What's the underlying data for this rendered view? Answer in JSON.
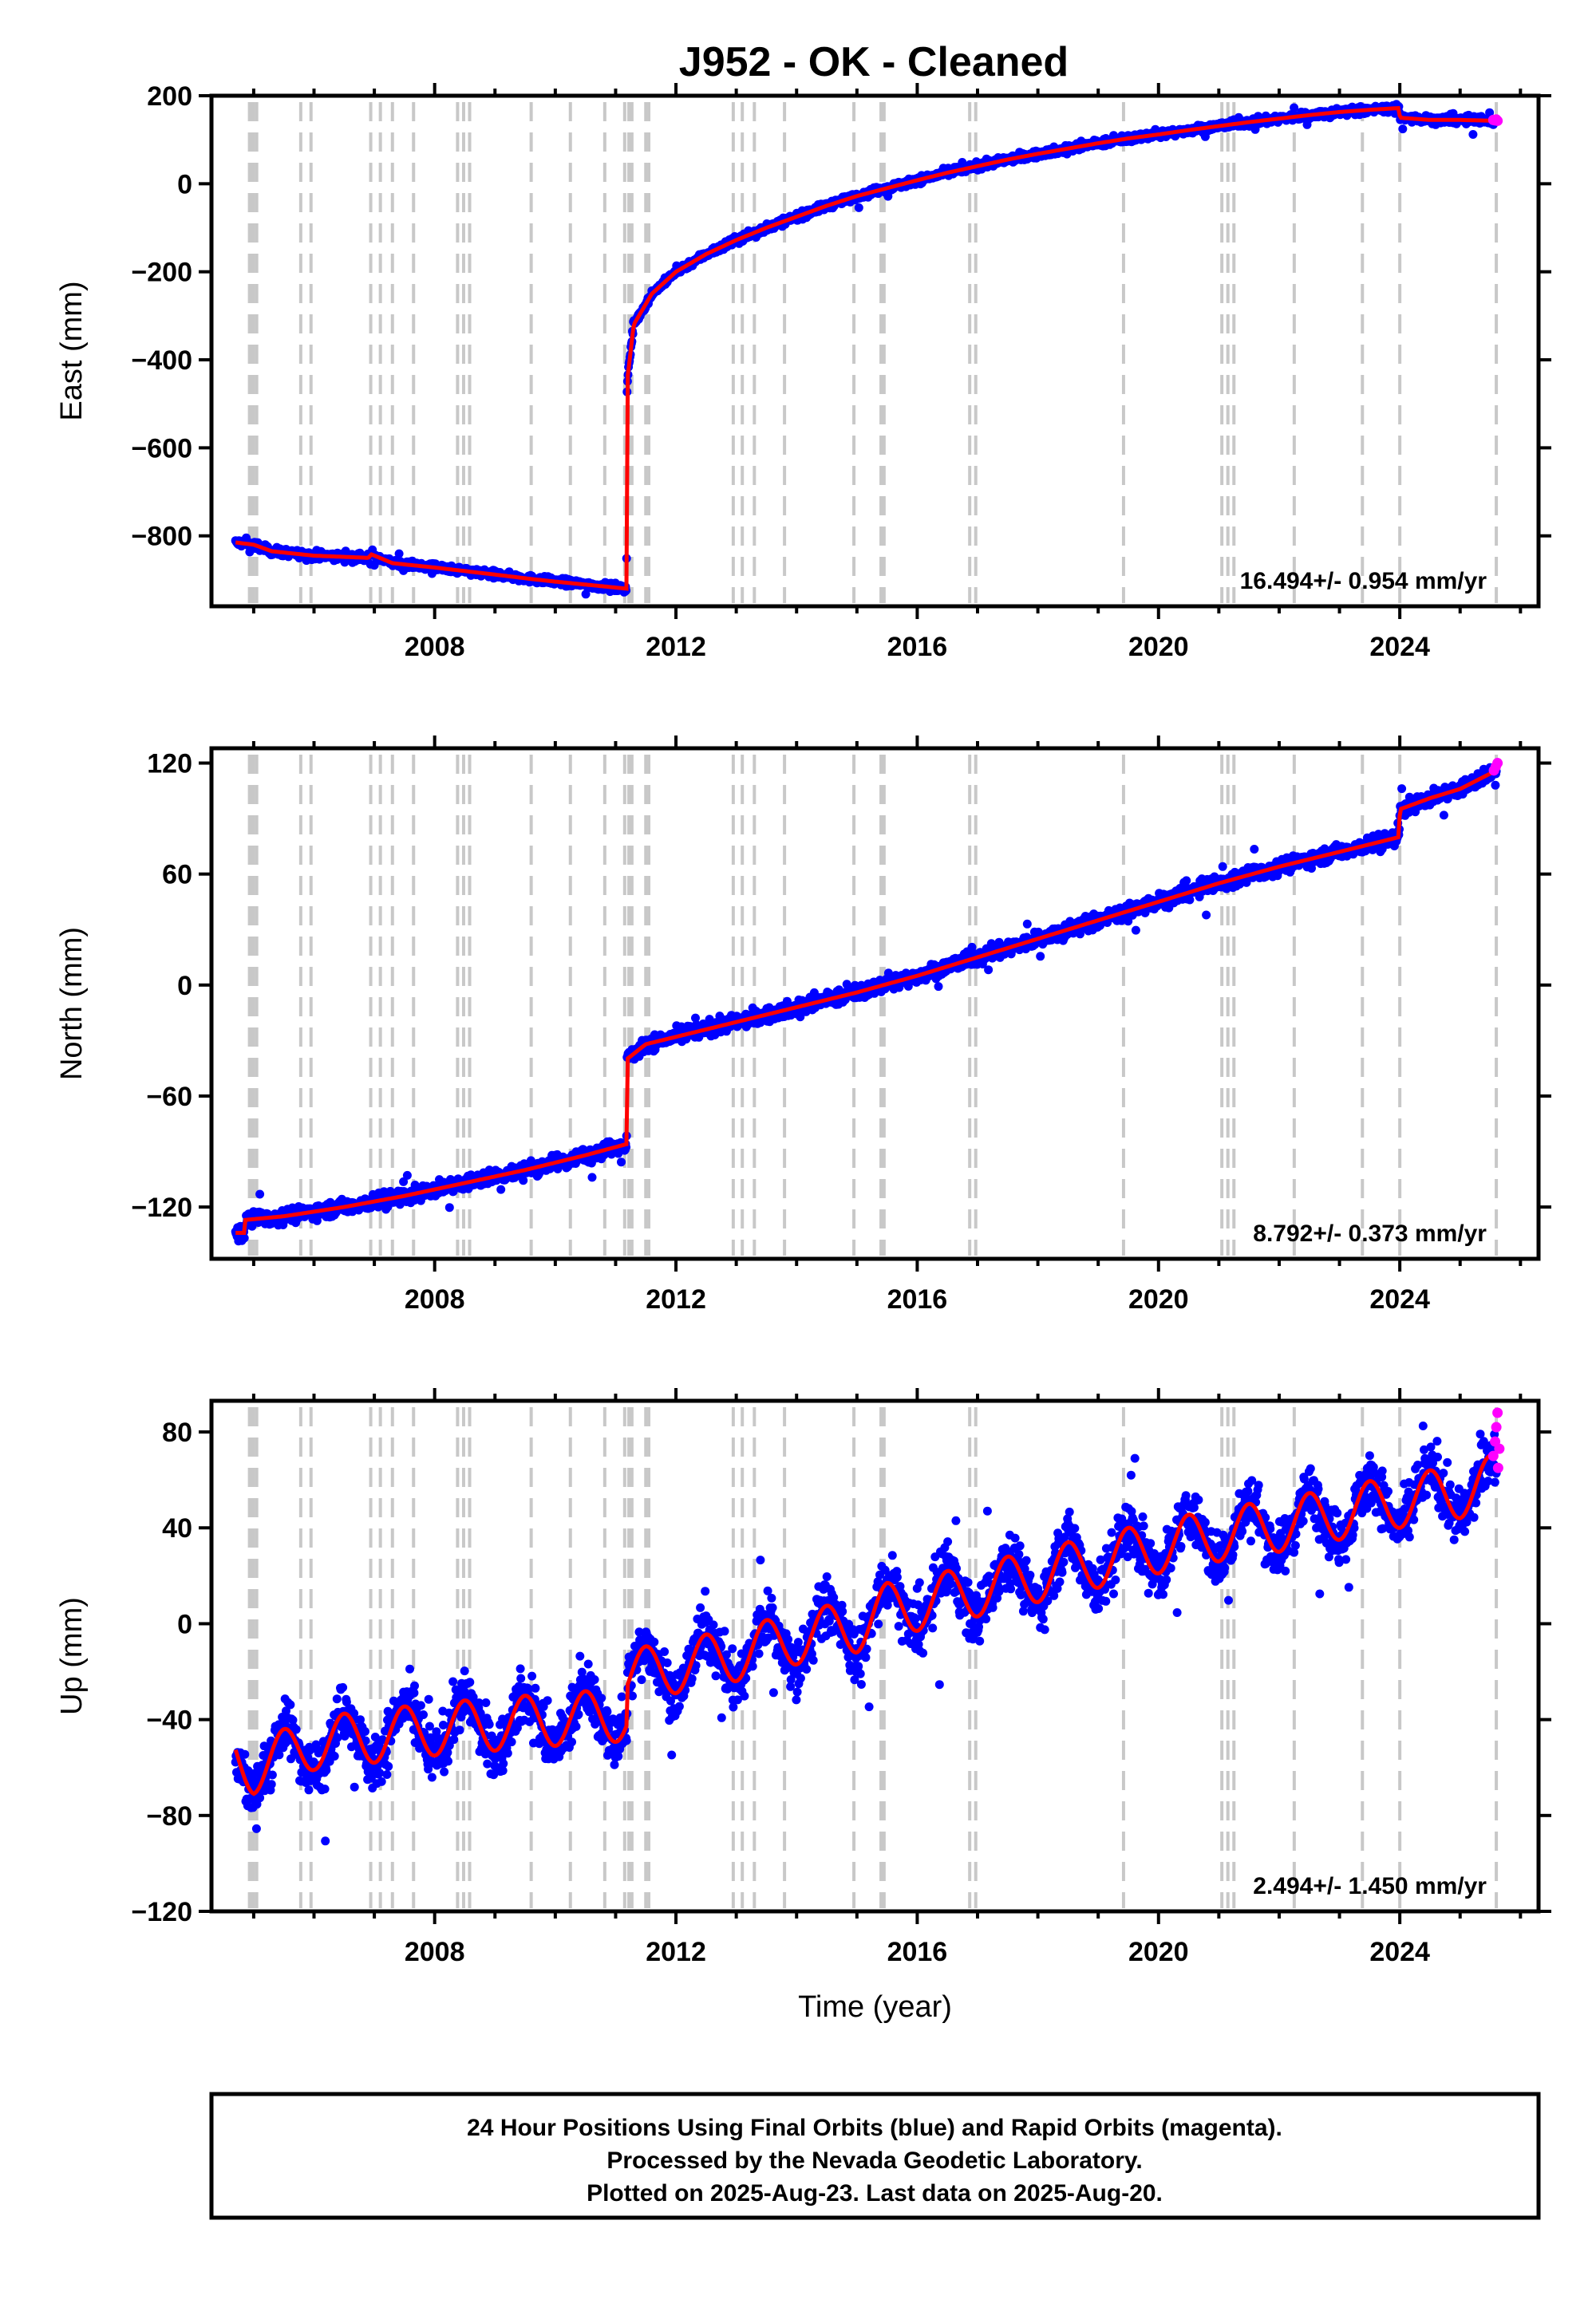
{
  "title": "J952  - OK - Cleaned",
  "colors": {
    "final": "#0000ff",
    "rapid": "#ff00ff",
    "model": "#ff0000",
    "events": "#c8c8c8"
  },
  "chart_data": [
    {
      "type": "scatter",
      "component": "east",
      "ylabel": "East (mm)",
      "xlim": [
        2004.3,
        2026.3
      ],
      "ylim": [
        -960,
        200
      ],
      "yticks": [
        200,
        0,
        -200,
        -400,
        -600,
        -800
      ],
      "xticks": [
        2008,
        2012,
        2016,
        2020,
        2024
      ],
      "rate_text": "16.494+/- 0.954 mm/yr",
      "model_points": [
        [
          2004.7,
          -815
        ],
        [
          2005.0,
          -820
        ],
        [
          2005.3,
          -835
        ],
        [
          2006.0,
          -845
        ],
        [
          2006.9,
          -850
        ],
        [
          2006.95,
          -842
        ],
        [
          2007.3,
          -862
        ],
        [
          2008.0,
          -872
        ],
        [
          2008.5,
          -880
        ],
        [
          2009.0,
          -888
        ],
        [
          2009.6,
          -898
        ],
        [
          2010.0,
          -904
        ],
        [
          2010.6,
          -912
        ],
        [
          2011.18,
          -920
        ],
        [
          2011.19,
          -450
        ],
        [
          2011.3,
          -320
        ],
        [
          2011.6,
          -250
        ],
        [
          2012.0,
          -200
        ],
        [
          2012.5,
          -160
        ],
        [
          2013.0,
          -128
        ],
        [
          2013.5,
          -100
        ],
        [
          2014.0,
          -75
        ],
        [
          2014.5,
          -50
        ],
        [
          2015.0,
          -28
        ],
        [
          2015.5,
          -10
        ],
        [
          2016.0,
          8
        ],
        [
          2016.5,
          25
        ],
        [
          2017.0,
          40
        ],
        [
          2017.5,
          55
        ],
        [
          2018.0,
          68
        ],
        [
          2018.5,
          80
        ],
        [
          2019.0,
          92
        ],
        [
          2019.5,
          103
        ],
        [
          2020.0,
          112
        ],
        [
          2020.5,
          122
        ],
        [
          2021.0,
          131
        ],
        [
          2021.5,
          140
        ],
        [
          2022.0,
          148
        ],
        [
          2022.5,
          156
        ],
        [
          2023.0,
          163
        ],
        [
          2023.5,
          168
        ],
        [
          2023.99,
          172
        ],
        [
          2024.0,
          150
        ],
        [
          2024.5,
          145
        ],
        [
          2025.0,
          145
        ],
        [
          2025.6,
          143
        ]
      ],
      "final": {
        "noise": 6,
        "seasonal": 0
      },
      "rapid_points": [
        [
          2025.55,
          145
        ],
        [
          2025.58,
          144
        ],
        [
          2025.6,
          146
        ],
        [
          2025.62,
          143
        ]
      ]
    },
    {
      "type": "scatter",
      "component": "north",
      "ylabel": "North (mm)",
      "xlim": [
        2004.3,
        2026.3
      ],
      "ylim": [
        -148,
        128
      ],
      "yticks": [
        120,
        60,
        0,
        -60,
        -120
      ],
      "xticks": [
        2008,
        2012,
        2016,
        2020,
        2024
      ],
      "rate_text": "8.792+/- 0.373 mm/yr",
      "model_points": [
        [
          2004.7,
          -134
        ],
        [
          2004.85,
          -134
        ],
        [
          2004.86,
          -127
        ],
        [
          2005.5,
          -125
        ],
        [
          2006.5,
          -120
        ],
        [
          2007.5,
          -114
        ],
        [
          2008.5,
          -107
        ],
        [
          2009.5,
          -100
        ],
        [
          2010.5,
          -92
        ],
        [
          2011.18,
          -86
        ],
        [
          2011.19,
          -40
        ],
        [
          2011.5,
          -32
        ],
        [
          2012.0,
          -28
        ],
        [
          2012.5,
          -24
        ],
        [
          2013.0,
          -20
        ],
        [
          2014.0,
          -12
        ],
        [
          2015.0,
          -4
        ],
        [
          2016.0,
          5
        ],
        [
          2017.0,
          15
        ],
        [
          2018.0,
          25
        ],
        [
          2019.0,
          35
        ],
        [
          2020.0,
          45
        ],
        [
          2021.0,
          55
        ],
        [
          2022.0,
          64
        ],
        [
          2023.0,
          72
        ],
        [
          2023.99,
          80
        ],
        [
          2024.0,
          95
        ],
        [
          2024.5,
          101
        ],
        [
          2025.0,
          106
        ],
        [
          2025.6,
          116
        ]
      ],
      "final": {
        "noise": 2.8,
        "seasonal": 1.5
      },
      "rapid_points": [
        [
          2025.56,
          116
        ],
        [
          2025.59,
          118
        ],
        [
          2025.62,
          120
        ]
      ]
    },
    {
      "type": "scatter",
      "component": "up",
      "ylabel": "Up (mm)",
      "xlim": [
        2004.3,
        2026.3
      ],
      "ylim": [
        -120,
        93
      ],
      "yticks": [
        80,
        40,
        0,
        -40,
        -80,
        -120
      ],
      "xticks": [
        2008,
        2012,
        2016,
        2020,
        2024
      ],
      "xlabel": "Time (year)",
      "rate_text": "2.494+/- 1.450 mm/yr",
      "model_points": [
        [
          2004.7,
          -56
        ],
        [
          2005.0,
          -60
        ],
        [
          2006.0,
          -50
        ],
        [
          2007.0,
          -47
        ],
        [
          2008.0,
          -44
        ],
        [
          2009.0,
          -42
        ],
        [
          2010.0,
          -40
        ],
        [
          2011.18,
          -38
        ],
        [
          2011.19,
          -22
        ],
        [
          2012.0,
          -18
        ],
        [
          2013.0,
          -13
        ],
        [
          2014.0,
          -6
        ],
        [
          2015.0,
          -1
        ],
        [
          2015.5,
          6
        ],
        [
          2016.0,
          8
        ],
        [
          2017.0,
          14
        ],
        [
          2018.0,
          20
        ],
        [
          2019.0,
          26
        ],
        [
          2020.0,
          32
        ],
        [
          2021.0,
          37
        ],
        [
          2022.0,
          41
        ],
        [
          2023.0,
          46
        ],
        [
          2024.0,
          51
        ],
        [
          2025.0,
          55
        ],
        [
          2025.6,
          60
        ]
      ],
      "model_seasonal_amp": 11,
      "final": {
        "noise": 8,
        "seasonal": 11
      },
      "rapid_points": [
        [
          2025.55,
          70
        ],
        [
          2025.58,
          76
        ],
        [
          2025.6,
          82
        ],
        [
          2025.62,
          88
        ],
        [
          2025.63,
          65
        ],
        [
          2025.65,
          73
        ]
      ]
    }
  ],
  "event_years": [
    2004.93,
    2004.97,
    2005.0,
    2005.05,
    2005.78,
    2005.95,
    2006.94,
    2007.1,
    2007.3,
    2007.65,
    2008.38,
    2008.48,
    2008.58,
    2009.6,
    2010.25,
    2010.82,
    2011.15,
    2011.22,
    2011.27,
    2011.5,
    2011.55,
    2012.95,
    2013.1,
    2013.3,
    2013.8,
    2014.95,
    2015.4,
    2015.45,
    2016.87,
    2016.97,
    2019.42,
    2021.05,
    2021.15,
    2021.25,
    2022.25,
    2023.38,
    2024.0,
    2025.6
  ],
  "footer": {
    "line1": "24 Hour Positions Using Final Orbits (blue) and Rapid Orbits (magenta).",
    "line2": "Processed by the Nevada Geodetic Laboratory.",
    "line3": "Plotted on 2025-Aug-23. Last data on 2025-Aug-20."
  }
}
